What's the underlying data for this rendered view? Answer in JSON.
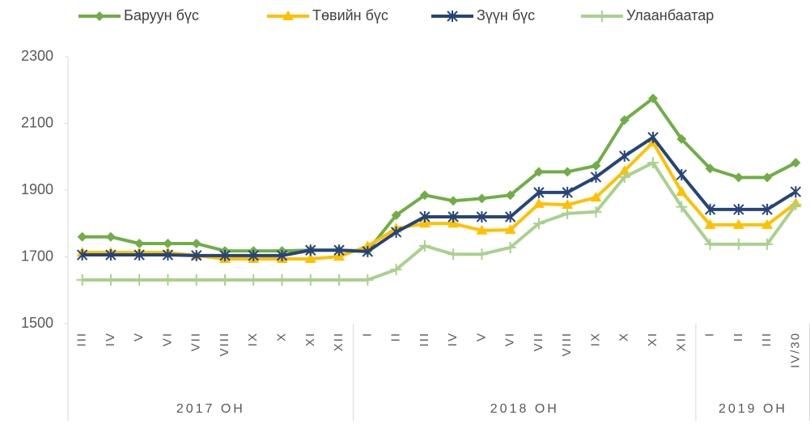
{
  "chart_data": {
    "type": "line",
    "category_groups": [
      {
        "name": "2017 ОН",
        "categories": [
          "III",
          "IV",
          "V",
          "VI",
          "VII",
          "VIII",
          "IX",
          "X",
          "XI",
          "XII"
        ]
      },
      {
        "name": "2018 ОН",
        "categories": [
          "I",
          "II",
          "III",
          "IV",
          "V",
          "VI",
          "VII",
          "VIII",
          "IX",
          "X",
          "XI",
          "XII"
        ]
      },
      {
        "name": "2019 ОН",
        "categories": [
          "I",
          "II",
          "III",
          "IV/30"
        ]
      }
    ],
    "series": [
      {
        "name": "Баруун бүс",
        "color": "#70ad47",
        "marker": "diamond",
        "values": [
          1760,
          1760,
          1740,
          1740,
          1740,
          1718,
          1718,
          1718,
          1720,
          1720,
          1718,
          1825,
          1885,
          1868,
          1875,
          1885,
          1955,
          1955,
          1973,
          2110,
          2175,
          2053,
          1965,
          1938,
          1938,
          1982
        ]
      },
      {
        "name": "Төвийн бүс",
        "color": "#ffc000",
        "marker": "triangle",
        "values": [
          1713,
          1713,
          1713,
          1713,
          1704,
          1694,
          1694,
          1694,
          1694,
          1701,
          1732,
          1785,
          1800,
          1800,
          1779,
          1781,
          1859,
          1856,
          1878,
          1958,
          2043,
          1895,
          1796,
          1796,
          1796,
          1861
        ]
      },
      {
        "name": "Зүүн бүс",
        "color": "#264478",
        "marker": "star",
        "values": [
          1706,
          1706,
          1706,
          1706,
          1704,
          1704,
          1704,
          1704,
          1720,
          1720,
          1716,
          1774,
          1820,
          1820,
          1820,
          1820,
          1893,
          1893,
          1939,
          2002,
          2058,
          1946,
          1842,
          1842,
          1842,
          1895
        ]
      },
      {
        "name": "Улаанбаатар",
        "color": "#a9d18e",
        "marker": "plus",
        "values": [
          1631,
          1631,
          1631,
          1631,
          1631,
          1631,
          1631,
          1631,
          1631,
          1631,
          1631,
          1662,
          1733,
          1708,
          1708,
          1728,
          1800,
          1830,
          1835,
          1939,
          1982,
          1850,
          1738,
          1738,
          1738,
          1856
        ]
      }
    ],
    "ylim": [
      1500,
      2300
    ],
    "yticks": [
      1500,
      1700,
      1900,
      2100,
      2300
    ]
  }
}
